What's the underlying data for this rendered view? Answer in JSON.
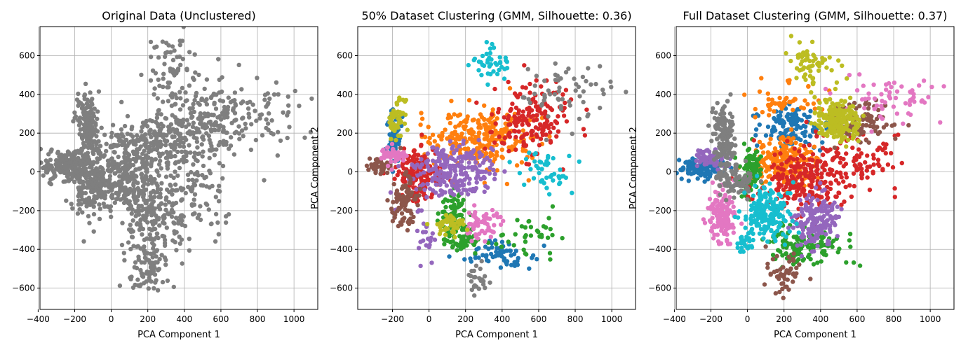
{
  "chart_data": [
    {
      "type": "scatter",
      "title": "Original Data (Unclustered)",
      "xlabel": "PCA Component 1",
      "ylabel": "",
      "xlim": [
        -390,
        1130
      ],
      "ylim": [
        -710,
        750
      ],
      "xticks": [
        -400,
        -200,
        0,
        200,
        400,
        600,
        800,
        1000
      ],
      "yticks": [
        -600,
        -400,
        -200,
        0,
        200,
        400,
        600
      ],
      "grid": true,
      "series": [
        {
          "color": "#7f7f7f",
          "clusters": [
            {
              "cx": -230,
              "cy": 40,
              "sx": 70,
              "sy": 40,
              "n": 220
            },
            {
              "cx": -130,
              "cy": 240,
              "sx": 30,
              "sy": 80,
              "n": 140
            },
            {
              "cx": -100,
              "cy": -80,
              "sx": 60,
              "sy": 90,
              "n": 170
            },
            {
              "cx": 40,
              "cy": -20,
              "sx": 90,
              "sy": 80,
              "n": 190
            },
            {
              "cx": 220,
              "cy": -230,
              "sx": 90,
              "sy": 110,
              "n": 210
            },
            {
              "cx": 160,
              "cy": 130,
              "sx": 110,
              "sy": 90,
              "n": 150
            },
            {
              "cx": 380,
              "cy": 150,
              "sx": 140,
              "sy": 100,
              "n": 160
            },
            {
              "cx": 560,
              "cy": 280,
              "sx": 110,
              "sy": 90,
              "n": 140
            },
            {
              "cx": 330,
              "cy": 520,
              "sx": 80,
              "sy": 90,
              "n": 70
            },
            {
              "cx": 200,
              "cy": -520,
              "sx": 50,
              "sy": 60,
              "n": 60
            },
            {
              "cx": 450,
              "cy": -120,
              "sx": 120,
              "sy": 120,
              "n": 90
            },
            {
              "cx": 800,
              "cy": 300,
              "sx": 130,
              "sy": 90,
              "n": 50
            }
          ]
        }
      ]
    },
    {
      "type": "scatter",
      "title": "50% Dataset Clustering (GMM, Silhouette: 0.36)",
      "xlabel": "PCA Component 1",
      "ylabel": "PCA Component 2",
      "xlim": [
        -390,
        1130
      ],
      "ylim": [
        -710,
        750
      ],
      "xticks": [
        -200,
        0,
        200,
        400,
        600,
        800,
        1000
      ],
      "yticks": [
        -600,
        -400,
        -200,
        0,
        200,
        400,
        600
      ],
      "grid": true,
      "series": [
        {
          "color": "#1f77b4",
          "clusters": [
            {
              "cx": -190,
              "cy": 170,
              "sx": 15,
              "sy": 70,
              "n": 90
            },
            {
              "cx": 390,
              "cy": -430,
              "sx": 100,
              "sy": 45,
              "n": 60
            }
          ]
        },
        {
          "color": "#ff7f0e",
          "clusters": [
            {
              "cx": 290,
              "cy": 180,
              "sx": 140,
              "sy": 80,
              "n": 260
            }
          ]
        },
        {
          "color": "#2ca02c",
          "clusters": [
            {
              "cx": 140,
              "cy": -220,
              "sx": 40,
              "sy": 60,
              "n": 80
            },
            {
              "cx": 200,
              "cy": -350,
              "sx": 60,
              "sy": 30,
              "n": 60
            },
            {
              "cx": 560,
              "cy": -320,
              "sx": 90,
              "sy": 80,
              "n": 35
            }
          ]
        },
        {
          "color": "#d62728",
          "clusters": [
            {
              "cx": -60,
              "cy": -10,
              "sx": 60,
              "sy": 70,
              "n": 160
            },
            {
              "cx": 560,
              "cy": 260,
              "sx": 110,
              "sy": 90,
              "n": 170
            }
          ]
        },
        {
          "color": "#9467bd",
          "clusters": [
            {
              "cx": 130,
              "cy": 0,
              "sx": 110,
              "sy": 70,
              "n": 240
            },
            {
              "cx": -20,
              "cy": -330,
              "sx": 25,
              "sy": 60,
              "n": 20
            }
          ]
        },
        {
          "color": "#8c564b",
          "clusters": [
            {
              "cx": -140,
              "cy": -160,
              "sx": 35,
              "sy": 70,
              "n": 90
            },
            {
              "cx": -280,
              "cy": 30,
              "sx": 30,
              "sy": 20,
              "n": 50
            }
          ]
        },
        {
          "color": "#e377c2",
          "clusters": [
            {
              "cx": -200,
              "cy": 90,
              "sx": 40,
              "sy": 20,
              "n": 60
            },
            {
              "cx": 290,
              "cy": -270,
              "sx": 50,
              "sy": 40,
              "n": 60
            }
          ]
        },
        {
          "color": "#7f7f7f",
          "clusters": [
            {
              "cx": 780,
              "cy": 400,
              "sx": 130,
              "sy": 70,
              "n": 60
            },
            {
              "cx": 260,
              "cy": -560,
              "sx": 40,
              "sy": 40,
              "n": 25
            }
          ]
        },
        {
          "color": "#bcbd22",
          "clusters": [
            {
              "cx": -170,
              "cy": 280,
              "sx": 25,
              "sy": 50,
              "n": 50
            },
            {
              "cx": 120,
              "cy": -270,
              "sx": 50,
              "sy": 35,
              "n": 50
            }
          ]
        },
        {
          "color": "#17becf",
          "clusters": [
            {
              "cx": 350,
              "cy": 560,
              "sx": 60,
              "sy": 50,
              "n": 40
            },
            {
              "cx": 640,
              "cy": 0,
              "sx": 70,
              "sy": 60,
              "n": 45
            }
          ]
        }
      ]
    },
    {
      "type": "scatter",
      "title": "Full Dataset Clustering (GMM, Silhouette: 0.37)",
      "xlabel": "PCA Component 1",
      "ylabel": "PCA Component 2",
      "xlim": [
        -390,
        1130
      ],
      "ylim": [
        -710,
        750
      ],
      "xticks": [
        -400,
        -200,
        0,
        200,
        400,
        600,
        800,
        1000
      ],
      "yticks": [
        -600,
        -400,
        -200,
        0,
        200,
        400,
        600
      ],
      "grid": true,
      "series": [
        {
          "color": "#1f77b4",
          "clusters": [
            {
              "cx": -250,
              "cy": 20,
              "sx": 60,
              "sy": 25,
              "n": 120
            },
            {
              "cx": 240,
              "cy": 220,
              "sx": 90,
              "sy": 50,
              "n": 130
            }
          ]
        },
        {
          "color": "#ff7f0e",
          "clusters": [
            {
              "cx": 200,
              "cy": 50,
              "sx": 90,
              "sy": 70,
              "n": 200
            },
            {
              "cx": 200,
              "cy": 370,
              "sx": 90,
              "sy": 40,
              "n": 50
            }
          ]
        },
        {
          "color": "#2ca02c",
          "clusters": [
            {
              "cx": 20,
              "cy": 10,
              "sx": 30,
              "sy": 60,
              "n": 100
            },
            {
              "cx": 300,
              "cy": -380,
              "sx": 100,
              "sy": 50,
              "n": 140
            }
          ]
        },
        {
          "color": "#d62728",
          "clusters": [
            {
              "cx": 320,
              "cy": -30,
              "sx": 130,
              "sy": 80,
              "n": 230
            },
            {
              "cx": 620,
              "cy": 50,
              "sx": 110,
              "sy": 80,
              "n": 80
            }
          ]
        },
        {
          "color": "#9467bd",
          "clusters": [
            {
              "cx": -200,
              "cy": 70,
              "sx": 50,
              "sy": 25,
              "n": 70
            },
            {
              "cx": 380,
              "cy": -250,
              "sx": 60,
              "sy": 70,
              "n": 170
            }
          ]
        },
        {
          "color": "#8c564b",
          "clusters": [
            {
              "cx": 620,
              "cy": 250,
              "sx": 80,
              "sy": 50,
              "n": 100
            },
            {
              "cx": 200,
              "cy": -540,
              "sx": 50,
              "sy": 50,
              "n": 50
            }
          ]
        },
        {
          "color": "#e377c2",
          "clusters": [
            {
              "cx": -140,
              "cy": -230,
              "sx": 40,
              "sy": 70,
              "n": 130
            },
            {
              "cx": 790,
              "cy": 380,
              "sx": 120,
              "sy": 70,
              "n": 60
            }
          ]
        },
        {
          "color": "#7f7f7f",
          "clusters": [
            {
              "cx": -130,
              "cy": 180,
              "sx": 30,
              "sy": 90,
              "n": 150
            },
            {
              "cx": -80,
              "cy": -40,
              "sx": 50,
              "sy": 50,
              "n": 90
            }
          ]
        },
        {
          "color": "#bcbd22",
          "clusters": [
            {
              "cx": 500,
              "cy": 260,
              "sx": 60,
              "sy": 60,
              "n": 220
            },
            {
              "cx": 350,
              "cy": 560,
              "sx": 60,
              "sy": 60,
              "n": 60
            }
          ]
        },
        {
          "color": "#17becf",
          "clusters": [
            {
              "cx": 100,
              "cy": -210,
              "sx": 60,
              "sy": 70,
              "n": 190
            },
            {
              "cx": -20,
              "cy": -370,
              "sx": 20,
              "sy": 30,
              "n": 25
            }
          ]
        }
      ]
    }
  ]
}
